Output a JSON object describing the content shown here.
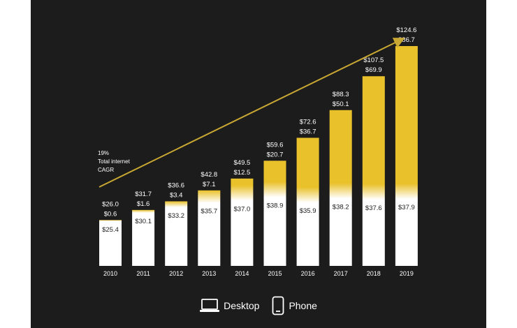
{
  "chart_data": {
    "type": "bar",
    "stacked": true,
    "categories": [
      "2010",
      "2011",
      "2012",
      "2013",
      "2014",
      "2015",
      "2016",
      "2017",
      "2018",
      "2019"
    ],
    "series": [
      {
        "name": "Desktop",
        "values": [
          25.4,
          30.1,
          33.2,
          35.7,
          37.0,
          38.9,
          35.9,
          38.2,
          37.6,
          37.9
        ],
        "labels": [
          "$25.4",
          "$30.1",
          "$33.2",
          "$35.7",
          "$37.0",
          "$38.9",
          "$35.9",
          "$38.2",
          "$37.6",
          "$37.9"
        ]
      },
      {
        "name": "Phone",
        "values": [
          0.6,
          1.6,
          3.4,
          7.1,
          12.5,
          20.7,
          36.7,
          50.1,
          69.9,
          86.7
        ],
        "labels": [
          "$0.6",
          "$1.6",
          "$3.4",
          "$7.1",
          "$12.5",
          "$20.7",
          "$36.7",
          "$50.1",
          "$69.9",
          "$86.7"
        ]
      }
    ],
    "totals": [
      26.0,
      31.7,
      36.6,
      42.8,
      49.5,
      59.6,
      72.6,
      88.3,
      107.5,
      124.6
    ],
    "total_labels": [
      "$26.0",
      "$31.7",
      "$36.6",
      "$42.8",
      "$49.5",
      "$59.6",
      "$72.6",
      "$88.3",
      "$107.5",
      "$124.6"
    ],
    "annotation": [
      "19%",
      "Total internet",
      "CAGR"
    ],
    "ylim": [
      0,
      124.6
    ],
    "colors": {
      "desktop": "#ffffff",
      "phone": "#e9c12b",
      "background": "#1c1c1c",
      "text": "#ffffff",
      "arrow": "#c8a832"
    }
  },
  "legend": {
    "desktop_label": "Desktop",
    "phone_label": "Phone"
  }
}
